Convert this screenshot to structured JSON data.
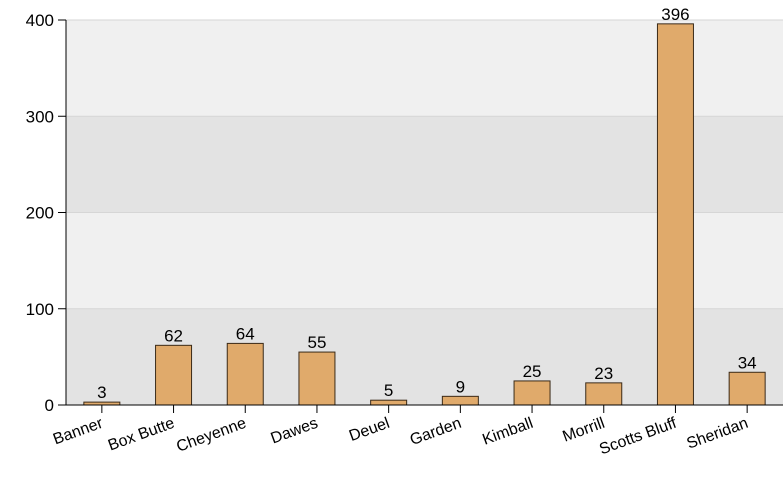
{
  "chart_data": {
    "type": "bar",
    "categories": [
      "Banner",
      "Box Butte",
      "Cheyenne",
      "Dawes",
      "Deuel",
      "Garden",
      "Kimball",
      "Morrill",
      "Scotts Bluff",
      "Sheridan"
    ],
    "values": [
      3,
      62,
      64,
      55,
      5,
      9,
      25,
      23,
      396,
      34
    ],
    "title": "",
    "xlabel": "",
    "ylabel": "",
    "ylim": [
      0,
      400
    ],
    "yticks": [
      0,
      100,
      200,
      300,
      400
    ],
    "grid": "horizontal bands",
    "data_labels": true
  },
  "colors": {
    "bar_fill": "#e0aa6b",
    "bar_stroke": "#3a2a18",
    "band_light": "#f0f0f0",
    "band_dark": "#e3e3e3",
    "axis": "#000000"
  }
}
